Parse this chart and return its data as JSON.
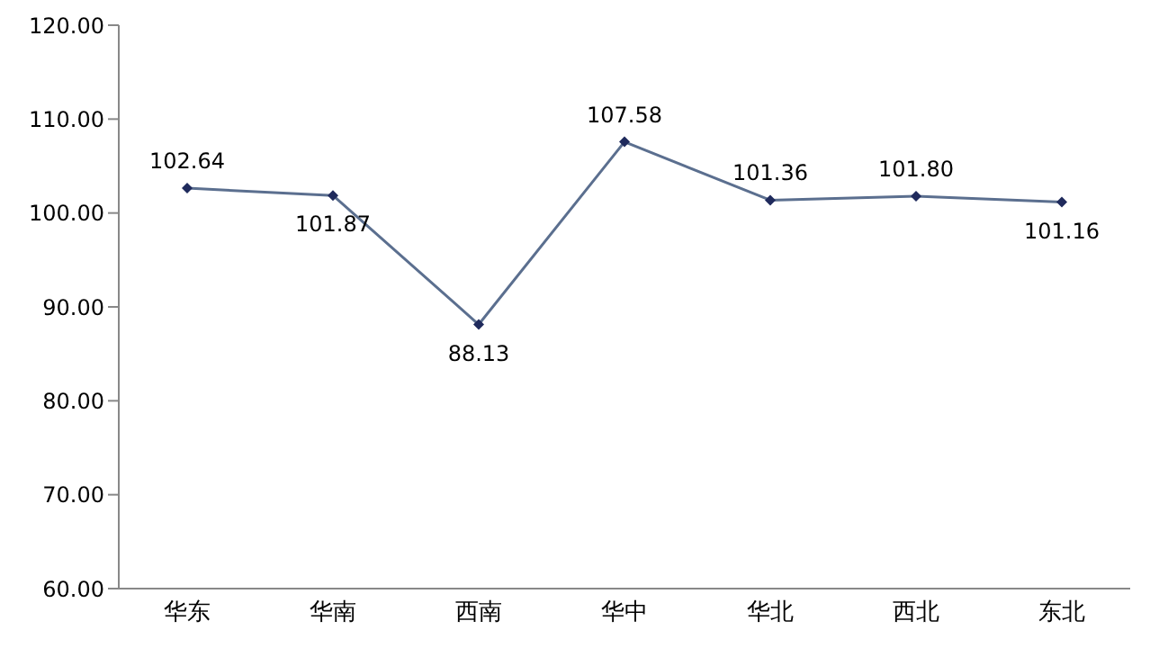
{
  "chart_data": {
    "type": "line",
    "categories": [
      "华东",
      "华南",
      "西南",
      "华中",
      "华北",
      "西北",
      "东北"
    ],
    "series": [
      {
        "color": "#5b6f8f",
        "values": [
          102.64,
          101.87,
          88.13,
          107.58,
          101.36,
          101.8,
          101.16
        ],
        "value_labels": [
          "102.64",
          "101.87",
          "88.13",
          "107.58",
          "101.36",
          "101.80",
          "101.16"
        ]
      }
    ],
    "ylim": [
      60,
      120
    ],
    "yticks": [
      {
        "value": 60,
        "label": "60.00"
      },
      {
        "value": 70,
        "label": "70.00"
      },
      {
        "value": 80,
        "label": "80.00"
      },
      {
        "value": 90,
        "label": "90.00"
      },
      {
        "value": 100,
        "label": "100.00"
      },
      {
        "value": 110,
        "label": "110.00"
      },
      {
        "value": 120,
        "label": "120.00"
      }
    ],
    "marker": "diamond",
    "grid": false,
    "legend": false
  }
}
